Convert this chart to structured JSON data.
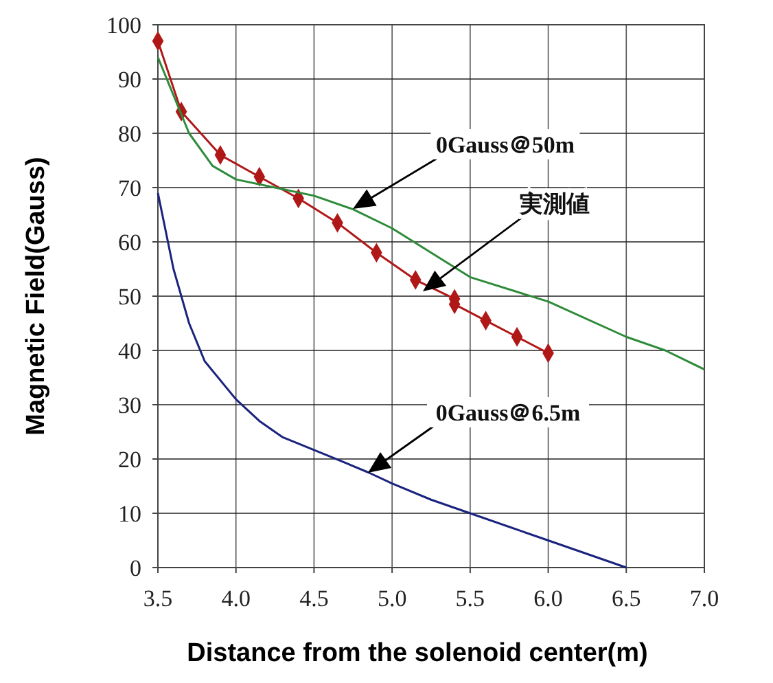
{
  "chart_data": {
    "type": "line",
    "xlabel": "Distance from the solenoid center(m)",
    "ylabel": "Magnetic Field(Gauss)",
    "xlim": [
      3.5,
      7.0
    ],
    "xticks": [
      {
        "value": 3.5,
        "label": "3.5"
      },
      {
        "value": 4,
        "label": "4.0"
      },
      {
        "value": 4.5,
        "label": "4.5"
      },
      {
        "value": 5,
        "label": "5.0"
      },
      {
        "value": 5.5,
        "label": "5.5"
      },
      {
        "value": 6,
        "label": "6.0"
      },
      {
        "value": 6.5,
        "label": "6.5"
      },
      {
        "value": 7,
        "label": "7.0"
      }
    ],
    "ylim": [
      0,
      100
    ],
    "yticks": [
      0,
      10,
      20,
      30,
      40,
      50,
      60,
      70,
      80,
      90,
      100
    ],
    "grid": true,
    "series": [
      {
        "color": "#b01818",
        "marker": "diamond",
        "x": [
          3.5,
          3.65,
          3.9,
          4.15,
          4.4,
          4.65,
          4.9,
          5.15,
          5.4,
          5.4,
          5.6,
          5.8,
          6.0
        ],
        "values": [
          97,
          84,
          76,
          72,
          68,
          63.5,
          58,
          53,
          49.5,
          48.5,
          45.5,
          42.5,
          39.5
        ]
      },
      {
        "color": "#2e8b3a",
        "marker": "none",
        "x": [
          3.5,
          3.6,
          3.7,
          3.85,
          4.0,
          4.25,
          4.5,
          4.75,
          5.0,
          5.25,
          5.5,
          6.0,
          6.5,
          6.75,
          7.0
        ],
        "values": [
          94,
          87,
          80,
          74,
          71.5,
          70,
          68.5,
          66,
          62.5,
          58,
          53.5,
          49,
          42.5,
          40,
          36.5
        ]
      },
      {
        "color": "#1a237e",
        "marker": "none",
        "x": [
          3.5,
          3.6,
          3.7,
          3.8,
          4.0,
          4.15,
          4.3,
          4.6,
          4.85,
          5.0,
          5.25,
          5.5,
          5.75,
          6.0,
          6.25,
          6.5
        ],
        "values": [
          69,
          55,
          45,
          38,
          31,
          27,
          24,
          20.5,
          17.5,
          15.5,
          12.5,
          10,
          7.5,
          5,
          2.5,
          0
        ]
      }
    ],
    "annotations": [
      "0Gauss＠50m",
      "実測値",
      "0Gauss＠6.5m"
    ]
  }
}
